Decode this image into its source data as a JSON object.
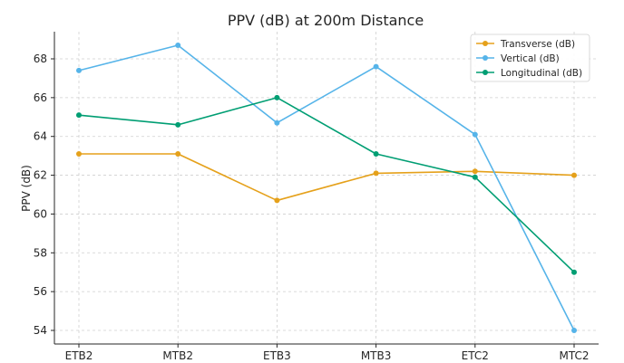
{
  "chart_data": {
    "type": "line",
    "title": "PPV (dB) at 200m Distance",
    "xlabel": "",
    "ylabel": "PPV (dB)",
    "categories": [
      "ETB2",
      "MTB2",
      "ETB3",
      "MTB3",
      "ETC2",
      "MTC2"
    ],
    "ylim": [
      53.3,
      69.4
    ],
    "yticks": [
      54,
      56,
      58,
      60,
      62,
      64,
      66,
      68
    ],
    "grid": true,
    "legend_position": "top-right",
    "series": [
      {
        "name": "Transverse (dB)",
        "color": "#E5A11B",
        "values": [
          63.1,
          63.1,
          60.7,
          62.1,
          62.2,
          62.0
        ]
      },
      {
        "name": "Vertical (dB)",
        "color": "#56B4E9",
        "values": [
          67.4,
          68.7,
          64.7,
          67.6,
          64.1,
          54.0
        ]
      },
      {
        "name": "Longitudinal (dB)",
        "color": "#009E73",
        "values": [
          65.1,
          64.6,
          66.0,
          63.1,
          61.9,
          57.0
        ]
      }
    ]
  }
}
